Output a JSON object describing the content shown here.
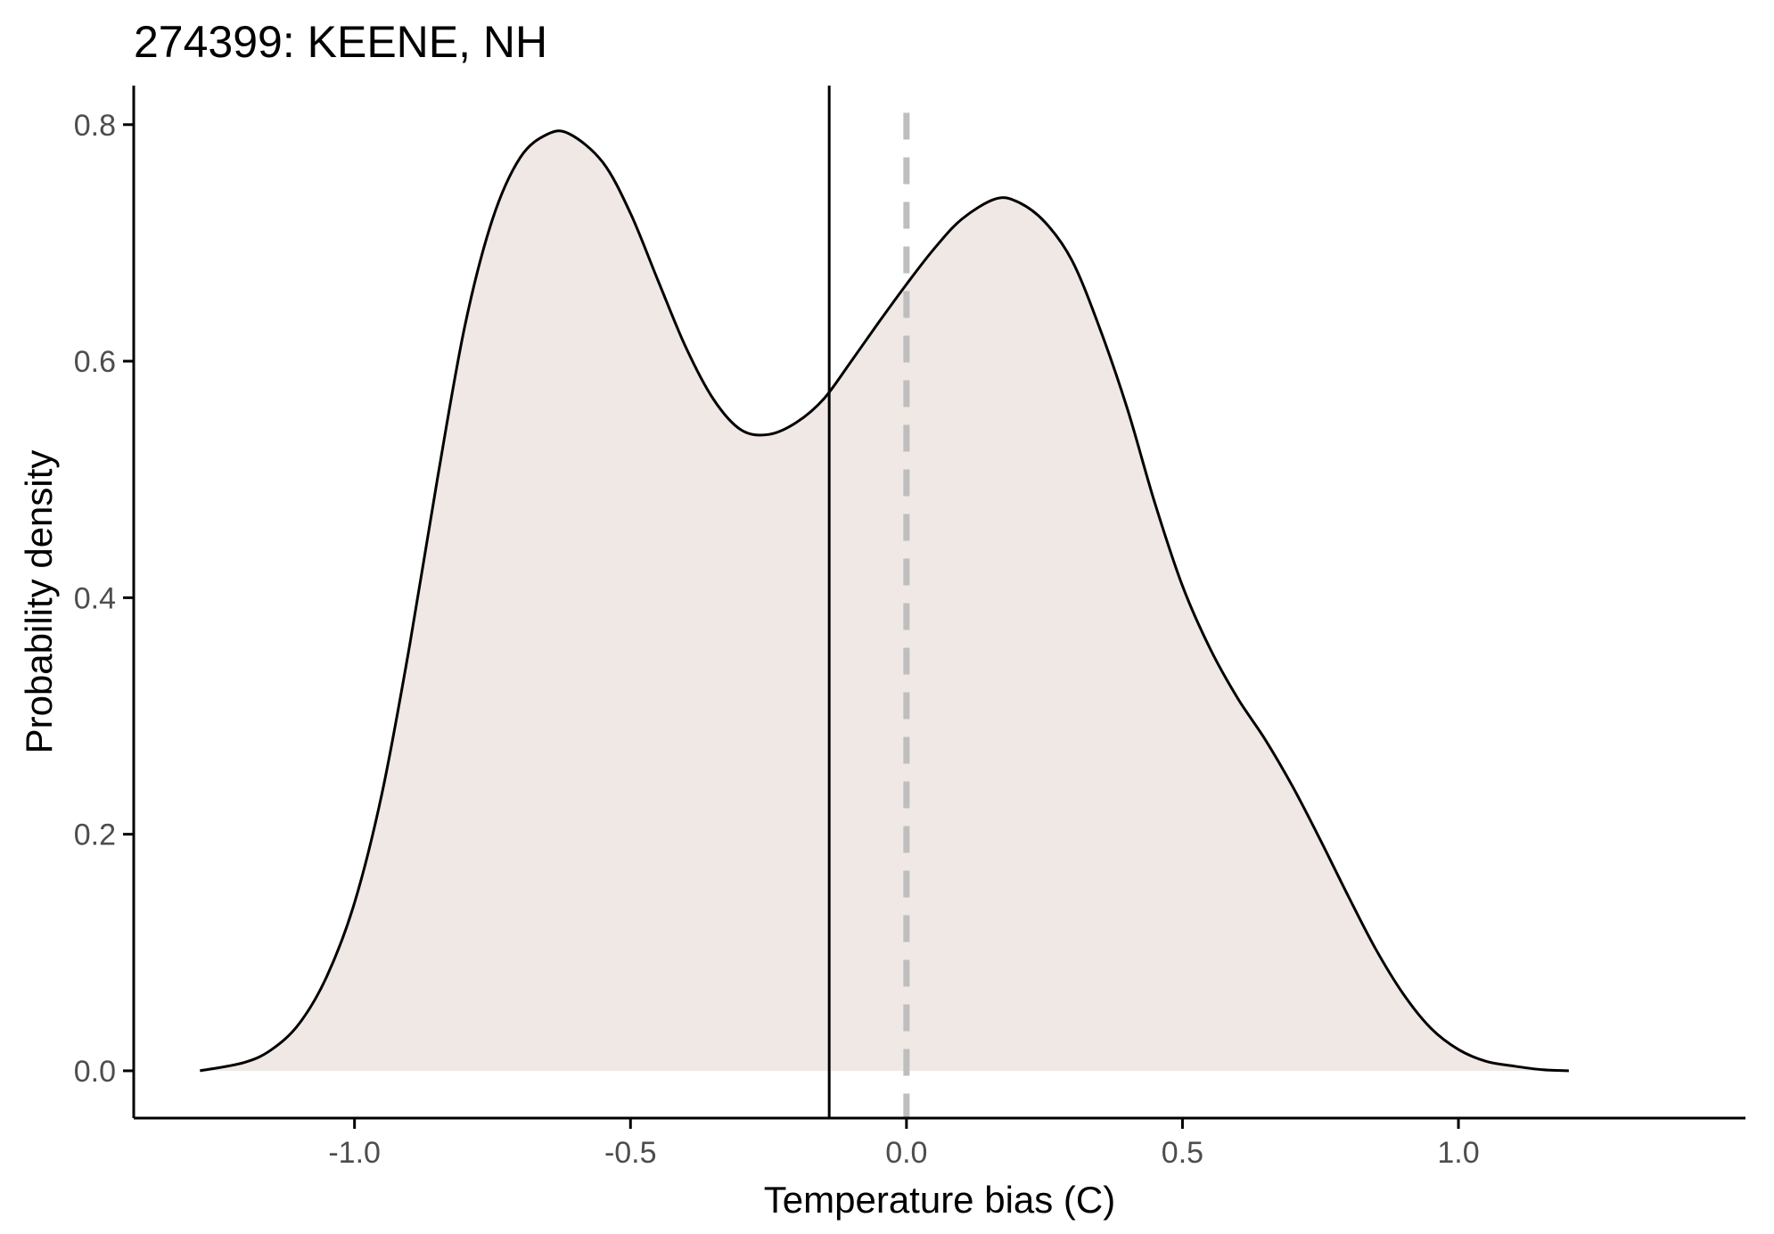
{
  "chart_data": {
    "type": "area",
    "title": "274399: KEENE, NH",
    "xlabel": "Temperature bias (C)",
    "ylabel": "Probability density",
    "xlim": [
      -1.4,
      1.52
    ],
    "ylim": [
      -0.04,
      0.833
    ],
    "x_ticks": [
      {
        "value": -1.0,
        "label": "-1.0"
      },
      {
        "value": -0.5,
        "label": "-0.5"
      },
      {
        "value": 0.0,
        "label": "0.0"
      },
      {
        "value": 0.5,
        "label": "0.5"
      },
      {
        "value": 1.0,
        "label": "1.0"
      }
    ],
    "y_ticks": [
      {
        "value": 0.0,
        "label": "0.0"
      },
      {
        "value": 0.2,
        "label": "0.2"
      },
      {
        "value": 0.4,
        "label": "0.4"
      },
      {
        "value": 0.6,
        "label": "0.6"
      },
      {
        "value": 0.8,
        "label": "0.8"
      }
    ],
    "grid": false,
    "legend": "none",
    "series": [
      {
        "x": [
          -1.28,
          -1.2,
          -1.15,
          -1.1,
          -1.05,
          -1.0,
          -0.95,
          -0.9,
          -0.85,
          -0.8,
          -0.75,
          -0.7,
          -0.65,
          -0.61,
          -0.55,
          -0.5,
          -0.45,
          -0.4,
          -0.35,
          -0.3,
          -0.25,
          -0.2,
          -0.15,
          -0.1,
          -0.05,
          0.0,
          0.05,
          0.1,
          0.16,
          0.2,
          0.25,
          0.3,
          0.35,
          0.4,
          0.45,
          0.5,
          0.55,
          0.6,
          0.65,
          0.7,
          0.75,
          0.8,
          0.85,
          0.9,
          0.95,
          1.0,
          1.05,
          1.1,
          1.15,
          1.2
        ],
        "y": [
          0.0,
          0.007,
          0.018,
          0.04,
          0.08,
          0.142,
          0.235,
          0.36,
          0.5,
          0.63,
          0.72,
          0.772,
          0.792,
          0.792,
          0.768,
          0.725,
          0.668,
          0.612,
          0.568,
          0.542,
          0.538,
          0.548,
          0.568,
          0.6,
          0.633,
          0.665,
          0.695,
          0.72,
          0.737,
          0.735,
          0.718,
          0.685,
          0.628,
          0.56,
          0.48,
          0.41,
          0.357,
          0.315,
          0.28,
          0.24,
          0.195,
          0.148,
          0.103,
          0.065,
          0.036,
          0.018,
          0.008,
          0.004,
          0.001,
          0.0
        ]
      }
    ],
    "reference_lines": [
      {
        "x": -0.14,
        "style": "solid"
      },
      {
        "x": 0.0,
        "style": "dashed"
      }
    ],
    "colors": {
      "fill": "#efe8e4",
      "line": "#000000",
      "mean_line": "#000000",
      "zero_line": "#bebebe",
      "axis": "#000000",
      "tick_label": "#4d4d4d"
    }
  }
}
